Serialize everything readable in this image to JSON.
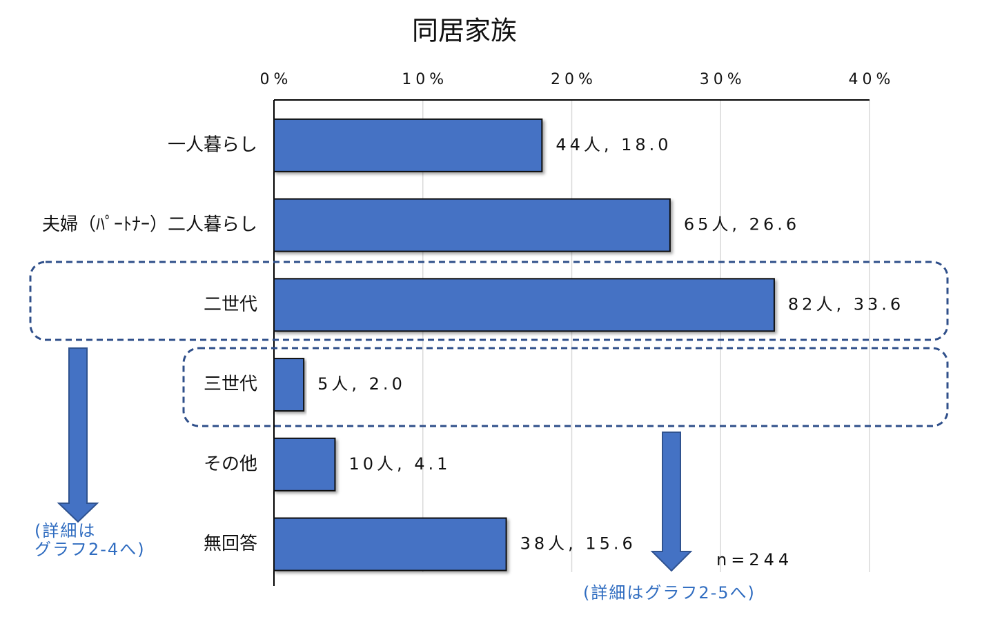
{
  "chart_data": {
    "type": "bar",
    "orientation": "horizontal",
    "title": "同居家族",
    "categories": [
      "一人暮らし",
      "夫婦（ﾊﾟｰﾄﾅｰ）二人暮らし",
      "二世代",
      "三世代",
      "その他",
      "無回答"
    ],
    "values": [
      18.0,
      26.6,
      33.6,
      2.0,
      4.1,
      15.6
    ],
    "value_labels": [
      "44人, 18.0",
      "65人, 26.6",
      "82人, 33.6",
      "5人, 2.0",
      "10人, 4.1",
      "38人, 15.6"
    ],
    "color": "#4472c4",
    "xlim": [
      0,
      40
    ],
    "xticks": [
      {
        "value": 0,
        "label": "0%"
      },
      {
        "value": 10,
        "label": "10%"
      },
      {
        "value": 20,
        "label": "20%"
      },
      {
        "value": 30,
        "label": "30%"
      },
      {
        "value": 40,
        "label": "40%"
      }
    ],
    "grid": true,
    "annotations": {
      "note_left": [
        "(詳細は",
        "グラフ2-4へ)"
      ],
      "note_right": "(詳細はグラフ2-5へ)",
      "sample": "n=244"
    }
  }
}
